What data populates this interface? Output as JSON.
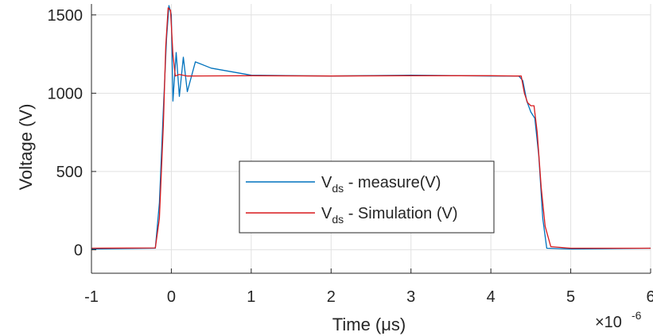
{
  "chart_data": {
    "type": "line",
    "xlabel": "Time (μs)",
    "ylabel": "Voltage (V)",
    "x_exponent_label": "×10",
    "x_exponent_power": "-6",
    "xlim": [
      -1,
      6
    ],
    "ylim": [
      -150,
      1570
    ],
    "xticks": [
      -1,
      0,
      1,
      2,
      3,
      4,
      5,
      6
    ],
    "yticks": [
      0,
      500,
      1000,
      1500
    ],
    "grid": true,
    "legend_position": "center",
    "series": [
      {
        "name": "V_ds - measure(V)",
        "label_main": "V",
        "label_sub": "ds",
        "label_rest": " -  measure(V)",
        "color": "#0072BD",
        "x": [
          -1,
          -0.2,
          -0.15,
          -0.1,
          -0.06,
          -0.03,
          0,
          0.02,
          0.06,
          0.1,
          0.15,
          0.2,
          0.3,
          0.5,
          1,
          2,
          3,
          4,
          4.35,
          4.4,
          4.45,
          4.5,
          4.55,
          4.6,
          4.65,
          4.7,
          5,
          6
        ],
        "y": [
          5,
          10,
          300,
          900,
          1350,
          1560,
          1500,
          950,
          1260,
          980,
          1230,
          1010,
          1200,
          1160,
          1115,
          1110,
          1115,
          1110,
          1110,
          1080,
          950,
          880,
          840,
          600,
          200,
          10,
          5,
          10
        ]
      },
      {
        "name": "V_ds - Simulation (V)",
        "label_main": "V",
        "label_sub": "ds",
        "label_rest": " - Simulation (V)",
        "color": "#D7191C",
        "x": [
          -1,
          -0.2,
          -0.15,
          -0.1,
          -0.07,
          -0.04,
          -0.01,
          0.02,
          0.05,
          0.1,
          0.2,
          1,
          2,
          3,
          4,
          4.3,
          4.38,
          4.42,
          4.46,
          4.5,
          4.54,
          4.58,
          4.63,
          4.68,
          4.75,
          5,
          6
        ],
        "y": [
          10,
          12,
          200,
          800,
          1300,
          1545,
          1530,
          1250,
          1110,
          1120,
          1110,
          1112,
          1110,
          1112,
          1112,
          1110,
          1110,
          1000,
          940,
          920,
          920,
          750,
          400,
          150,
          20,
          10,
          10
        ]
      }
    ]
  }
}
